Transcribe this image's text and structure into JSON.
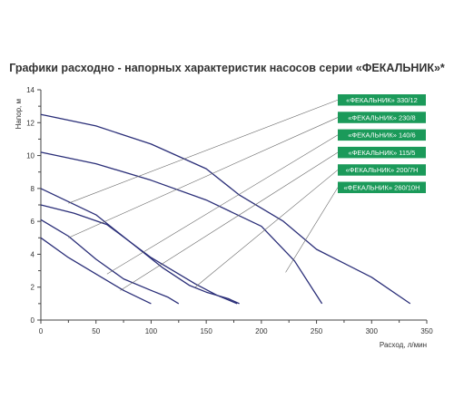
{
  "chart_data": {
    "type": "line",
    "title": "Графики расходно - напорных характеристик насосов серии «ФЕКАЛЬНИК»*",
    "xlabel": "Расход, л/мин",
    "ylabel": "Напор, м",
    "xlim": [
      0,
      350
    ],
    "ylim": [
      0,
      14
    ],
    "xticks": [
      0,
      50,
      100,
      150,
      200,
      250,
      300,
      350
    ],
    "yticks": [
      0,
      2,
      4,
      6,
      8,
      10,
      12,
      14
    ],
    "grid": "none",
    "legend_position": "right",
    "colors": {
      "line": "#2a2e78",
      "leader": "#666666",
      "label_bg": "#1b9a5a",
      "label_text": "#ffffff",
      "axis": "#444444",
      "text": "#333333"
    },
    "series": [
      {
        "name": "«ФЕКАЛЬНИК» 330/12",
        "x": [
          0,
          50,
          100,
          150,
          180,
          220,
          250,
          300,
          335
        ],
        "y": [
          12.5,
          11.8,
          10.7,
          9.2,
          7.6,
          6.0,
          4.3,
          2.6,
          1.0
        ]
      },
      {
        "name": "«ФЕКАЛЬНИК» 230/8",
        "x": [
          0,
          50,
          100,
          150,
          200,
          230,
          255
        ],
        "y": [
          10.2,
          9.5,
          8.5,
          7.3,
          5.7,
          3.6,
          1.0
        ]
      },
      {
        "name": "«ФЕКАЛЬНИК» 140/6",
        "x": [
          0,
          50,
          80,
          110,
          135,
          150,
          170,
          180
        ],
        "y": [
          8.0,
          6.4,
          4.8,
          3.2,
          2.1,
          1.7,
          1.3,
          1.0
        ]
      },
      {
        "name": "«ФЕКАЛЬНИК» 115/5",
        "x": [
          0,
          25,
          50,
          75,
          100,
          115,
          125
        ],
        "y": [
          6.1,
          5.1,
          3.7,
          2.5,
          1.8,
          1.4,
          1.0
        ]
      },
      {
        "name": "«ФЕКАЛЬНИК» 200/7Н",
        "x": [
          0,
          30,
          60,
          100,
          140,
          160,
          178
        ],
        "y": [
          7.0,
          6.5,
          5.8,
          3.8,
          2.2,
          1.5,
          1.0
        ]
      },
      {
        "name": "«ФЕКАЛЬНИК» 260/10Н",
        "x": [
          0,
          25,
          50,
          75,
          100
        ],
        "y": [
          5.0,
          3.8,
          2.8,
          1.8,
          1.0
        ]
      }
    ],
    "label_anchors": [
      {
        "x": 25,
        "y": 7.1
      },
      {
        "x": 25,
        "y": 5.0
      },
      {
        "x": 60,
        "y": 2.8
      },
      {
        "x": 72,
        "y": 1.8
      },
      {
        "x": 140,
        "y": 2.0
      },
      {
        "x": 222,
        "y": 2.9
      }
    ]
  }
}
